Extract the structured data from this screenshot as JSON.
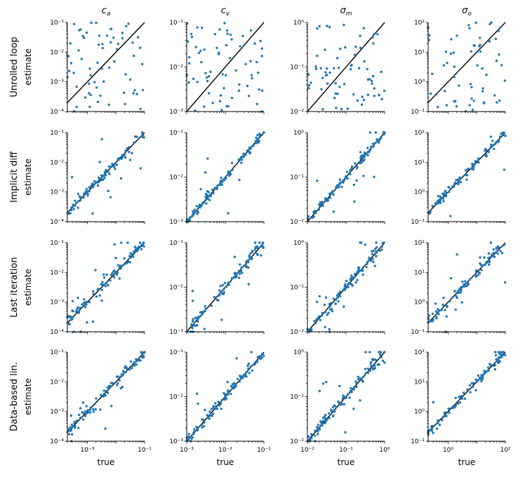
{
  "figure": {
    "column_titles": [
      "c_a",
      "c_v",
      "σ_m",
      "σ_o"
    ],
    "column_title_display": [
      {
        "base": "c",
        "sub": "a"
      },
      {
        "base": "c",
        "sub": "v"
      },
      {
        "base": "σ",
        "sub": "m"
      },
      {
        "base": "σ",
        "sub": "o"
      }
    ],
    "row_titles": [
      "Unrolled loop",
      "Implicit diff",
      "Last iteration",
      "Data-based lin."
    ],
    "ylabel": "estimate",
    "xlabel": "true",
    "marker_color": "#1f77b4",
    "line_color": "#000000"
  },
  "chart_data": {
    "type": "scatter",
    "scale": "log-log",
    "grid": false,
    "panels_layout": "4 rows x 4 columns",
    "columns": [
      {
        "name": "c_a",
        "xlim": [
          0.0002,
          0.1
        ],
        "ylim": [
          0.0001,
          0.1
        ],
        "x_ticks": [
          0.001,
          0.1
        ],
        "x_tick_labels": [
          "10⁻³",
          "10⁻¹"
        ],
        "y_ticks": [
          0.0001,
          0.001,
          0.01,
          0.1
        ],
        "y_tick_labels": [
          "10⁻⁴",
          "10⁻³",
          "10⁻²",
          "10⁻¹"
        ],
        "true_min": 0.0001,
        "true_max": 0.1
      },
      {
        "name": "c_v",
        "xlim": [
          0.001,
          0.1
        ],
        "ylim": [
          0.001,
          0.1
        ],
        "x_ticks": [
          0.001,
          0.01,
          0.1
        ],
        "x_tick_labels": [
          "10⁻³",
          "10⁻²",
          "10⁻¹"
        ],
        "y_ticks": [
          0.001,
          0.01,
          0.1
        ],
        "y_tick_labels": [
          "10⁻³",
          "10⁻²",
          "10⁻¹"
        ],
        "true_min": 0.001,
        "true_max": 0.1
      },
      {
        "name": "σ_m",
        "xlim": [
          0.01,
          1
        ],
        "ylim": [
          0.01,
          1
        ],
        "x_ticks": [
          0.01,
          0.1,
          1
        ],
        "x_tick_labels": [
          "10⁻²",
          "10⁻¹",
          "10⁰"
        ],
        "y_ticks": [
          0.01,
          0.1,
          1
        ],
        "y_tick_labels": [
          "10⁻²",
          "10⁻¹",
          "10⁰"
        ],
        "true_min": 0.01,
        "true_max": 1
      },
      {
        "name": "σ_o",
        "xlim": [
          0.2,
          100
        ],
        "ylim": [
          0.1,
          100
        ],
        "x_ticks": [
          1,
          100
        ],
        "x_tick_labels": [
          "10⁰",
          "10²"
        ],
        "y_ticks": [
          0.1,
          1,
          10,
          100
        ],
        "y_tick_labels": [
          "10⁻¹",
          "10⁰",
          "10¹",
          "10²"
        ],
        "true_min": 0.1,
        "true_max": 100
      }
    ],
    "rows": [
      {
        "name": "Unrolled loop",
        "style": "uniform",
        "n": 70
      },
      {
        "name": "Implicit diff",
        "style": "diagonal",
        "n": 110,
        "spread": 0.06,
        "outlier_frac": 0.1
      },
      {
        "name": "Last iteration",
        "style": "diagonal",
        "n": 110,
        "spread": 0.07,
        "outlier_frac": 0.13
      },
      {
        "name": "Data-based lin.",
        "style": "diagonal",
        "n": 110,
        "spread": 0.07,
        "outlier_frac": 0.12
      }
    ],
    "identity_line": "y = x",
    "seed": 7
  }
}
